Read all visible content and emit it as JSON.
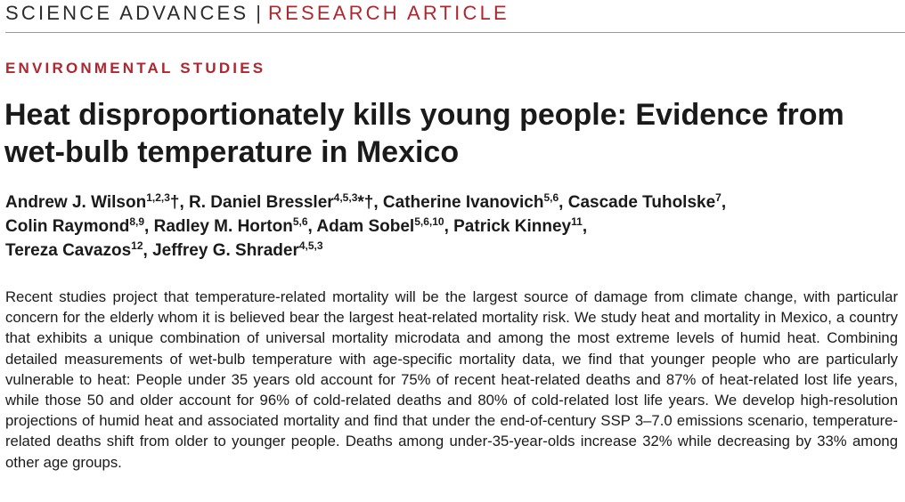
{
  "header": {
    "journal": "SCIENCE ADVANCES",
    "separator": "|",
    "article_type": "RESEARCH ARTICLE"
  },
  "section": "ENVIRONMENTAL STUDIES",
  "title": "Heat disproportionately kills young people: Evidence from wet-bulb temperature in Mexico",
  "authors": [
    {
      "name": "Andrew J. Wilson",
      "sup": "1,2,3",
      "mark": "†",
      "sep": ", "
    },
    {
      "name": "R. Daniel Bressler",
      "sup": "4,5,3",
      "mark": "*†",
      "sep": ", "
    },
    {
      "name": "Catherine Ivanovich",
      "sup": "5,6",
      "mark": "",
      "sep": ", "
    },
    {
      "name": "Cascade Tuholske",
      "sup": "7",
      "mark": "",
      "sep": ","
    },
    {
      "name": "Colin Raymond",
      "sup": "8,9",
      "mark": "",
      "sep": ", "
    },
    {
      "name": "Radley M. Horton",
      "sup": "5,6",
      "mark": "",
      "sep": ", "
    },
    {
      "name": "Adam Sobel",
      "sup": "5,6,10",
      "mark": "",
      "sep": ", "
    },
    {
      "name": "Patrick Kinney",
      "sup": "11",
      "mark": "",
      "sep": ","
    },
    {
      "name": "Tereza Cavazos",
      "sup": "12",
      "mark": "",
      "sep": ", "
    },
    {
      "name": "Jeffrey G. Shrader",
      "sup": "4,5,3",
      "mark": "",
      "sep": ""
    }
  ],
  "abstract": "Recent studies project that temperature-related mortality will be the largest source of damage from climate change, with particular concern for the elderly whom it is believed bear the largest heat-related mortality risk. We study heat and mortality in Mexico, a country that exhibits a unique combination of universal mortality microdata and among the most extreme levels of humid heat. Combining detailed measurements of wet-bulb temperature with age-specific mortality data, we find that younger people who are particularly vulnerable to heat: People under 35 years old account for 75% of recent heat-related deaths and 87% of heat-related lost life years, while those 50 and older account for 96% of cold-related deaths and 80% of cold-related lost life years. We develop high-resolution projections of humid heat and associated mortality and find that under the end-of-century SSP 3–7.0 emissions scenario, temperature-related deaths shift from older to younger people. Deaths among under-35-year-olds increase 32% while decreasing by 33% among other age groups."
}
